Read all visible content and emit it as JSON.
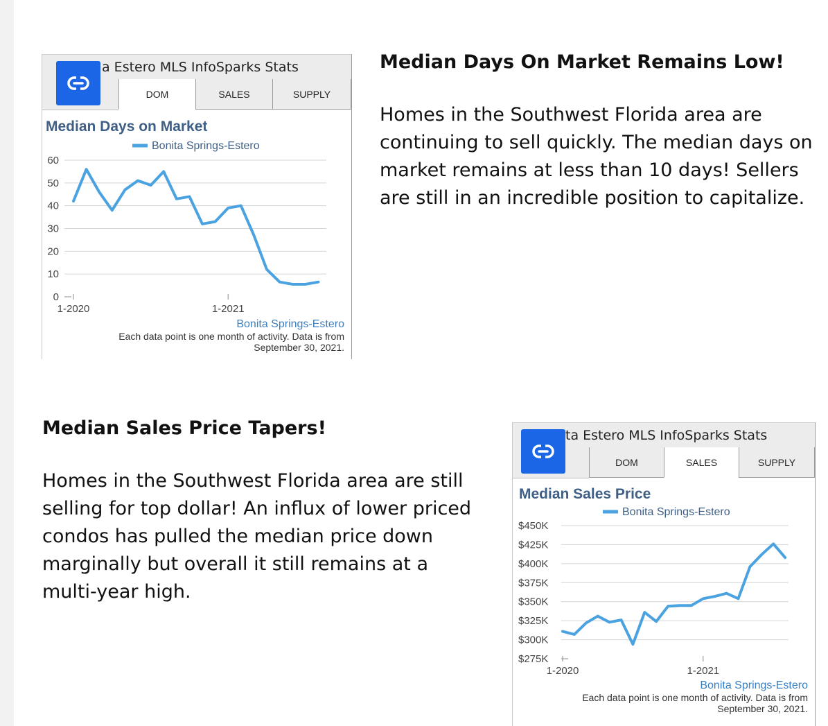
{
  "section1": {
    "heading": "Median Days On Market Remains Low!",
    "body": "Homes in the Southwest Florida area are continuing to sell quickly. The median days on market remains at less than 10 days! Sellers are still in an incredible position to capitalize."
  },
  "section2": {
    "heading": "Median Sales Price Tapers!",
    "body": "Homes in the Southwest Florida area are still selling for top dollar! An influx of lower priced condos has pulled the median price down marginally but overall it still remains at a multi-year high."
  },
  "widget1": {
    "window_title": "a Estero MLS InfoSparks Stats",
    "tabs": [
      "DOM",
      "SALES",
      "SUPPLY"
    ],
    "active_tab": "DOM",
    "region_label": "Bonita Springs-Estero",
    "footer_note_line1": "Each data point is one month of activity. Data is from",
    "footer_note_line2": "September 30, 2021."
  },
  "widget2": {
    "window_title": "ta Estero MLS InfoSparks Stats",
    "tabs": [
      "DOM",
      "SALES",
      "SUPPLY"
    ],
    "active_tab": "SALES",
    "region_label": "Bonita Springs-Estero",
    "footer_note_line1": "Each data point is one month of activity. Data is from",
    "footer_note_line2": "September 30, 2021."
  },
  "colors": {
    "series": "#4aa3e0",
    "title": "#3f5f86",
    "link_button": "#1a66e6"
  },
  "chart_data": [
    {
      "type": "line",
      "title": "Median Days on Market",
      "series": [
        {
          "name": "Bonita Springs-Estero",
          "values": [
            42,
            56,
            46,
            38,
            47,
            51,
            49,
            55,
            43,
            44,
            32,
            33,
            39,
            40,
            27,
            12,
            6.5,
            5.5,
            5.5,
            6.5
          ]
        }
      ],
      "x_tick_labels": [
        "1-2020",
        "1-2021"
      ],
      "y_ticks": [
        0,
        10,
        20,
        30,
        40,
        50,
        60
      ],
      "ylim": [
        0,
        60
      ],
      "grid": true,
      "legend_position": "top-center"
    },
    {
      "type": "line",
      "title": "Median Sales Price",
      "series": [
        {
          "name": "Bonita Springs-Estero",
          "values": [
            311,
            307,
            322,
            331,
            323,
            326,
            294,
            336,
            324,
            344,
            345,
            345,
            354,
            357,
            361,
            354,
            396,
            412,
            426,
            408
          ]
        }
      ],
      "x_tick_labels": [
        "1-2020",
        "1-2021"
      ],
      "y_ticks": [
        275,
        300,
        325,
        350,
        375,
        400,
        425,
        450
      ],
      "y_tick_labels": [
        "$275K",
        "$300K",
        "$325K",
        "$350K",
        "$375K",
        "$400K",
        "$425K",
        "$450K"
      ],
      "y_unit": "thousands of dollars",
      "ylim": [
        275,
        450
      ],
      "grid": true,
      "legend_position": "top-center"
    }
  ]
}
